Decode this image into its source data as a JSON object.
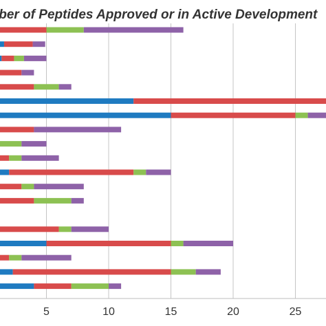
{
  "chart_data": {
    "type": "bar",
    "orientation": "horizontal",
    "stacked": true,
    "title": "Number of Peptides Approved or in Active Development",
    "xlabel": "",
    "ylabel": "",
    "xlim": [
      0,
      30
    ],
    "x_ticks": [
      5,
      10,
      15,
      20,
      25
    ],
    "grid": "vertical",
    "colors": [
      "#1f7bc1",
      "#d84b4b",
      "#8dc153",
      "#8e62a8"
    ],
    "rows": [
      [
        0.7,
        4.3,
        3.0,
        8.0
      ],
      [
        1.6,
        2.3,
        0.0,
        1.0
      ],
      [
        1.4,
        1.0,
        0.8,
        1.8
      ],
      [
        0.0,
        3.0,
        0.0,
        1.0
      ],
      [
        0.0,
        4.0,
        2.0,
        1.0
      ],
      [
        12.0,
        18.0,
        0.0,
        0.0
      ],
      [
        15.0,
        10.0,
        1.0,
        3.0
      ],
      [
        0.0,
        4.0,
        0.0,
        7.0
      ],
      [
        0.0,
        0.0,
        3.0,
        2.0
      ],
      [
        0.0,
        2.0,
        1.0,
        3.0
      ],
      [
        2.0,
        10.0,
        1.0,
        2.0
      ],
      [
        0.0,
        3.0,
        1.0,
        4.0
      ],
      [
        0.0,
        4.0,
        3.0,
        1.0
      ],
      [
        0.0,
        0.0,
        0.0,
        0.0
      ],
      [
        0.7,
        5.3,
        1.0,
        3.0
      ],
      [
        5.0,
        10.0,
        1.0,
        4.0
      ],
      [
        0.7,
        1.3,
        1.0,
        4.0
      ],
      [
        2.3,
        12.7,
        2.0,
        2.0
      ],
      [
        4.0,
        3.0,
        3.0,
        1.0
      ]
    ]
  }
}
